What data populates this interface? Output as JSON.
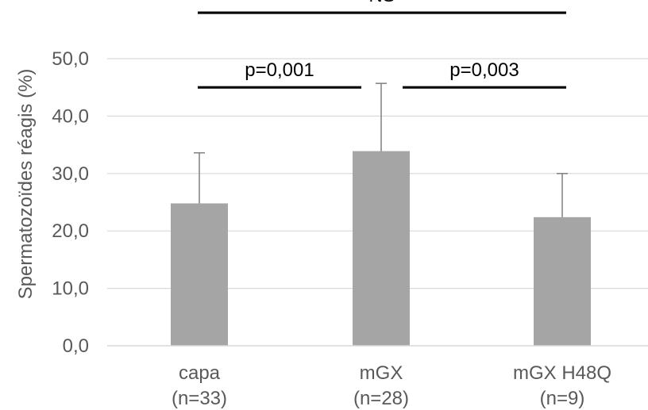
{
  "chart_data": {
    "type": "bar",
    "title": "",
    "xlabel": "",
    "ylabel": "Spermatozoïdes réagis (%)",
    "ylim": [
      0,
      50
    ],
    "yticks": [
      "0,0",
      "10,0",
      "20,0",
      "30,0",
      "40,0",
      "50,0"
    ],
    "grid": "horizontal",
    "categories": [
      {
        "name": "capa",
        "n": "(n=33)"
      },
      {
        "name": "mGX",
        "n": "(n=28)"
      },
      {
        "name": "mGX H48Q",
        "n": "(n=9)"
      }
    ],
    "values": [
      24.8,
      33.9,
      22.4
    ],
    "errors": [
      8.8,
      11.8,
      7.6
    ],
    "significance": [
      {
        "from": 0,
        "to": 2,
        "label": "NS",
        "level": 58
      },
      {
        "from": 0,
        "to": 1,
        "label": "p=0,001",
        "level": 45
      },
      {
        "from": 1,
        "to": 2,
        "label": "p=0,003",
        "level": 45
      }
    ],
    "colors": {
      "bar": "#a5a5a5",
      "grid": "#d9d9d9",
      "axis": "#d9d9d9",
      "error": "#7f7f7f",
      "bracket": "#000000",
      "text": "#595959"
    }
  }
}
